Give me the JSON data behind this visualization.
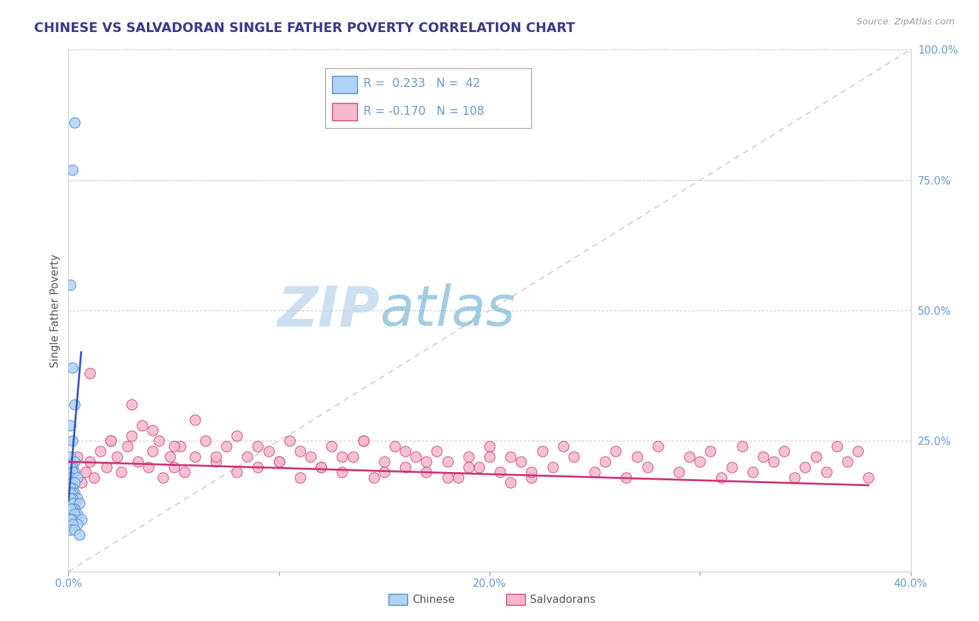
{
  "title": "CHINESE VS SALVADORAN SINGLE FATHER POVERTY CORRELATION CHART",
  "source": "Source: ZipAtlas.com",
  "ylabel": "Single Father Poverty",
  "xlim": [
    0.0,
    0.4
  ],
  "ylim": [
    0.0,
    1.0
  ],
  "xticks": [
    0.0,
    0.1,
    0.2,
    0.3,
    0.4
  ],
  "xtick_labels": [
    "0.0%",
    "",
    "20.0%",
    "",
    "40.0%"
  ],
  "yticks": [
    0.0,
    0.25,
    0.5,
    0.75,
    1.0
  ],
  "ytick_labels_right": [
    "",
    "25.0%",
    "50.0%",
    "75.0%",
    "100.0%"
  ],
  "legend_r_chinese": "0.233",
  "legend_n_chinese": "42",
  "legend_r_salvadoran": "-0.170",
  "legend_n_salvadoran": "108",
  "chinese_color": "#add3f5",
  "salvadoran_color": "#f5b8cc",
  "chinese_edge_color": "#5588cc",
  "salvadoran_edge_color": "#cc4477",
  "chinese_line_color": "#3355bb",
  "salvadoran_line_color": "#cc3377",
  "diag_line_color": "#cccccc",
  "background_color": "#ffffff",
  "watermark_zip": "ZIP",
  "watermark_atlas": "atlas",
  "title_color": "#3a3a8c",
  "source_color": "#999999",
  "tick_color": "#6699cc",
  "ylabel_color": "#555555",
  "chinese_scatter_x": [
    0.003,
    0.002,
    0.001,
    0.002,
    0.003,
    0.001,
    0.002,
    0.001,
    0.003,
    0.002,
    0.001,
    0.003,
    0.002,
    0.001,
    0.004,
    0.002,
    0.003,
    0.001,
    0.002,
    0.001,
    0.003,
    0.002,
    0.001,
    0.004,
    0.002,
    0.001,
    0.003,
    0.002,
    0.005,
    0.003,
    0.002,
    0.001,
    0.004,
    0.003,
    0.002,
    0.001,
    0.006,
    0.004,
    0.002,
    0.001,
    0.003,
    0.005
  ],
  "chinese_scatter_y": [
    0.86,
    0.77,
    0.55,
    0.39,
    0.32,
    0.28,
    0.25,
    0.22,
    0.21,
    0.2,
    0.2,
    0.19,
    0.19,
    0.18,
    0.18,
    0.17,
    0.17,
    0.16,
    0.16,
    0.16,
    0.15,
    0.15,
    0.15,
    0.14,
    0.14,
    0.14,
    0.13,
    0.13,
    0.13,
    0.12,
    0.12,
    0.12,
    0.11,
    0.11,
    0.1,
    0.1,
    0.1,
    0.09,
    0.09,
    0.08,
    0.08,
    0.07
  ],
  "salvadoran_scatter_x": [
    0.002,
    0.004,
    0.006,
    0.008,
    0.01,
    0.012,
    0.015,
    0.018,
    0.02,
    0.023,
    0.025,
    0.028,
    0.03,
    0.033,
    0.035,
    0.038,
    0.04,
    0.043,
    0.045,
    0.048,
    0.05,
    0.053,
    0.055,
    0.06,
    0.065,
    0.07,
    0.075,
    0.08,
    0.085,
    0.09,
    0.095,
    0.1,
    0.105,
    0.11,
    0.115,
    0.12,
    0.125,
    0.13,
    0.135,
    0.14,
    0.145,
    0.15,
    0.155,
    0.16,
    0.165,
    0.17,
    0.175,
    0.18,
    0.185,
    0.19,
    0.195,
    0.2,
    0.205,
    0.21,
    0.215,
    0.22,
    0.225,
    0.23,
    0.235,
    0.24,
    0.25,
    0.255,
    0.26,
    0.265,
    0.27,
    0.275,
    0.28,
    0.29,
    0.295,
    0.3,
    0.305,
    0.31,
    0.315,
    0.32,
    0.325,
    0.33,
    0.335,
    0.34,
    0.345,
    0.35,
    0.355,
    0.36,
    0.365,
    0.37,
    0.375,
    0.38,
    0.01,
    0.02,
    0.03,
    0.04,
    0.05,
    0.06,
    0.07,
    0.08,
    0.09,
    0.1,
    0.11,
    0.12,
    0.13,
    0.14,
    0.15,
    0.16,
    0.17,
    0.18,
    0.19,
    0.2,
    0.21,
    0.22
  ],
  "salvadoran_scatter_y": [
    0.2,
    0.22,
    0.17,
    0.19,
    0.21,
    0.18,
    0.23,
    0.2,
    0.25,
    0.22,
    0.19,
    0.24,
    0.26,
    0.21,
    0.28,
    0.2,
    0.23,
    0.25,
    0.18,
    0.22,
    0.2,
    0.24,
    0.19,
    0.22,
    0.25,
    0.21,
    0.24,
    0.19,
    0.22,
    0.2,
    0.23,
    0.21,
    0.25,
    0.18,
    0.22,
    0.2,
    0.24,
    0.19,
    0.22,
    0.25,
    0.18,
    0.21,
    0.24,
    0.2,
    0.22,
    0.19,
    0.23,
    0.21,
    0.18,
    0.22,
    0.2,
    0.24,
    0.19,
    0.22,
    0.21,
    0.18,
    0.23,
    0.2,
    0.24,
    0.22,
    0.19,
    0.21,
    0.23,
    0.18,
    0.22,
    0.2,
    0.24,
    0.19,
    0.22,
    0.21,
    0.23,
    0.18,
    0.2,
    0.24,
    0.19,
    0.22,
    0.21,
    0.23,
    0.18,
    0.2,
    0.22,
    0.19,
    0.24,
    0.21,
    0.23,
    0.18,
    0.38,
    0.25,
    0.32,
    0.27,
    0.24,
    0.29,
    0.22,
    0.26,
    0.24,
    0.21,
    0.23,
    0.2,
    0.22,
    0.25,
    0.19,
    0.23,
    0.21,
    0.18,
    0.2,
    0.22,
    0.17,
    0.19
  ],
  "chinese_trend_x": [
    0.0,
    0.006
  ],
  "chinese_trend_y": [
    0.135,
    0.42
  ],
  "salvadoran_trend_x": [
    0.0,
    0.38
  ],
  "salvadoran_trend_y": [
    0.21,
    0.165
  ]
}
